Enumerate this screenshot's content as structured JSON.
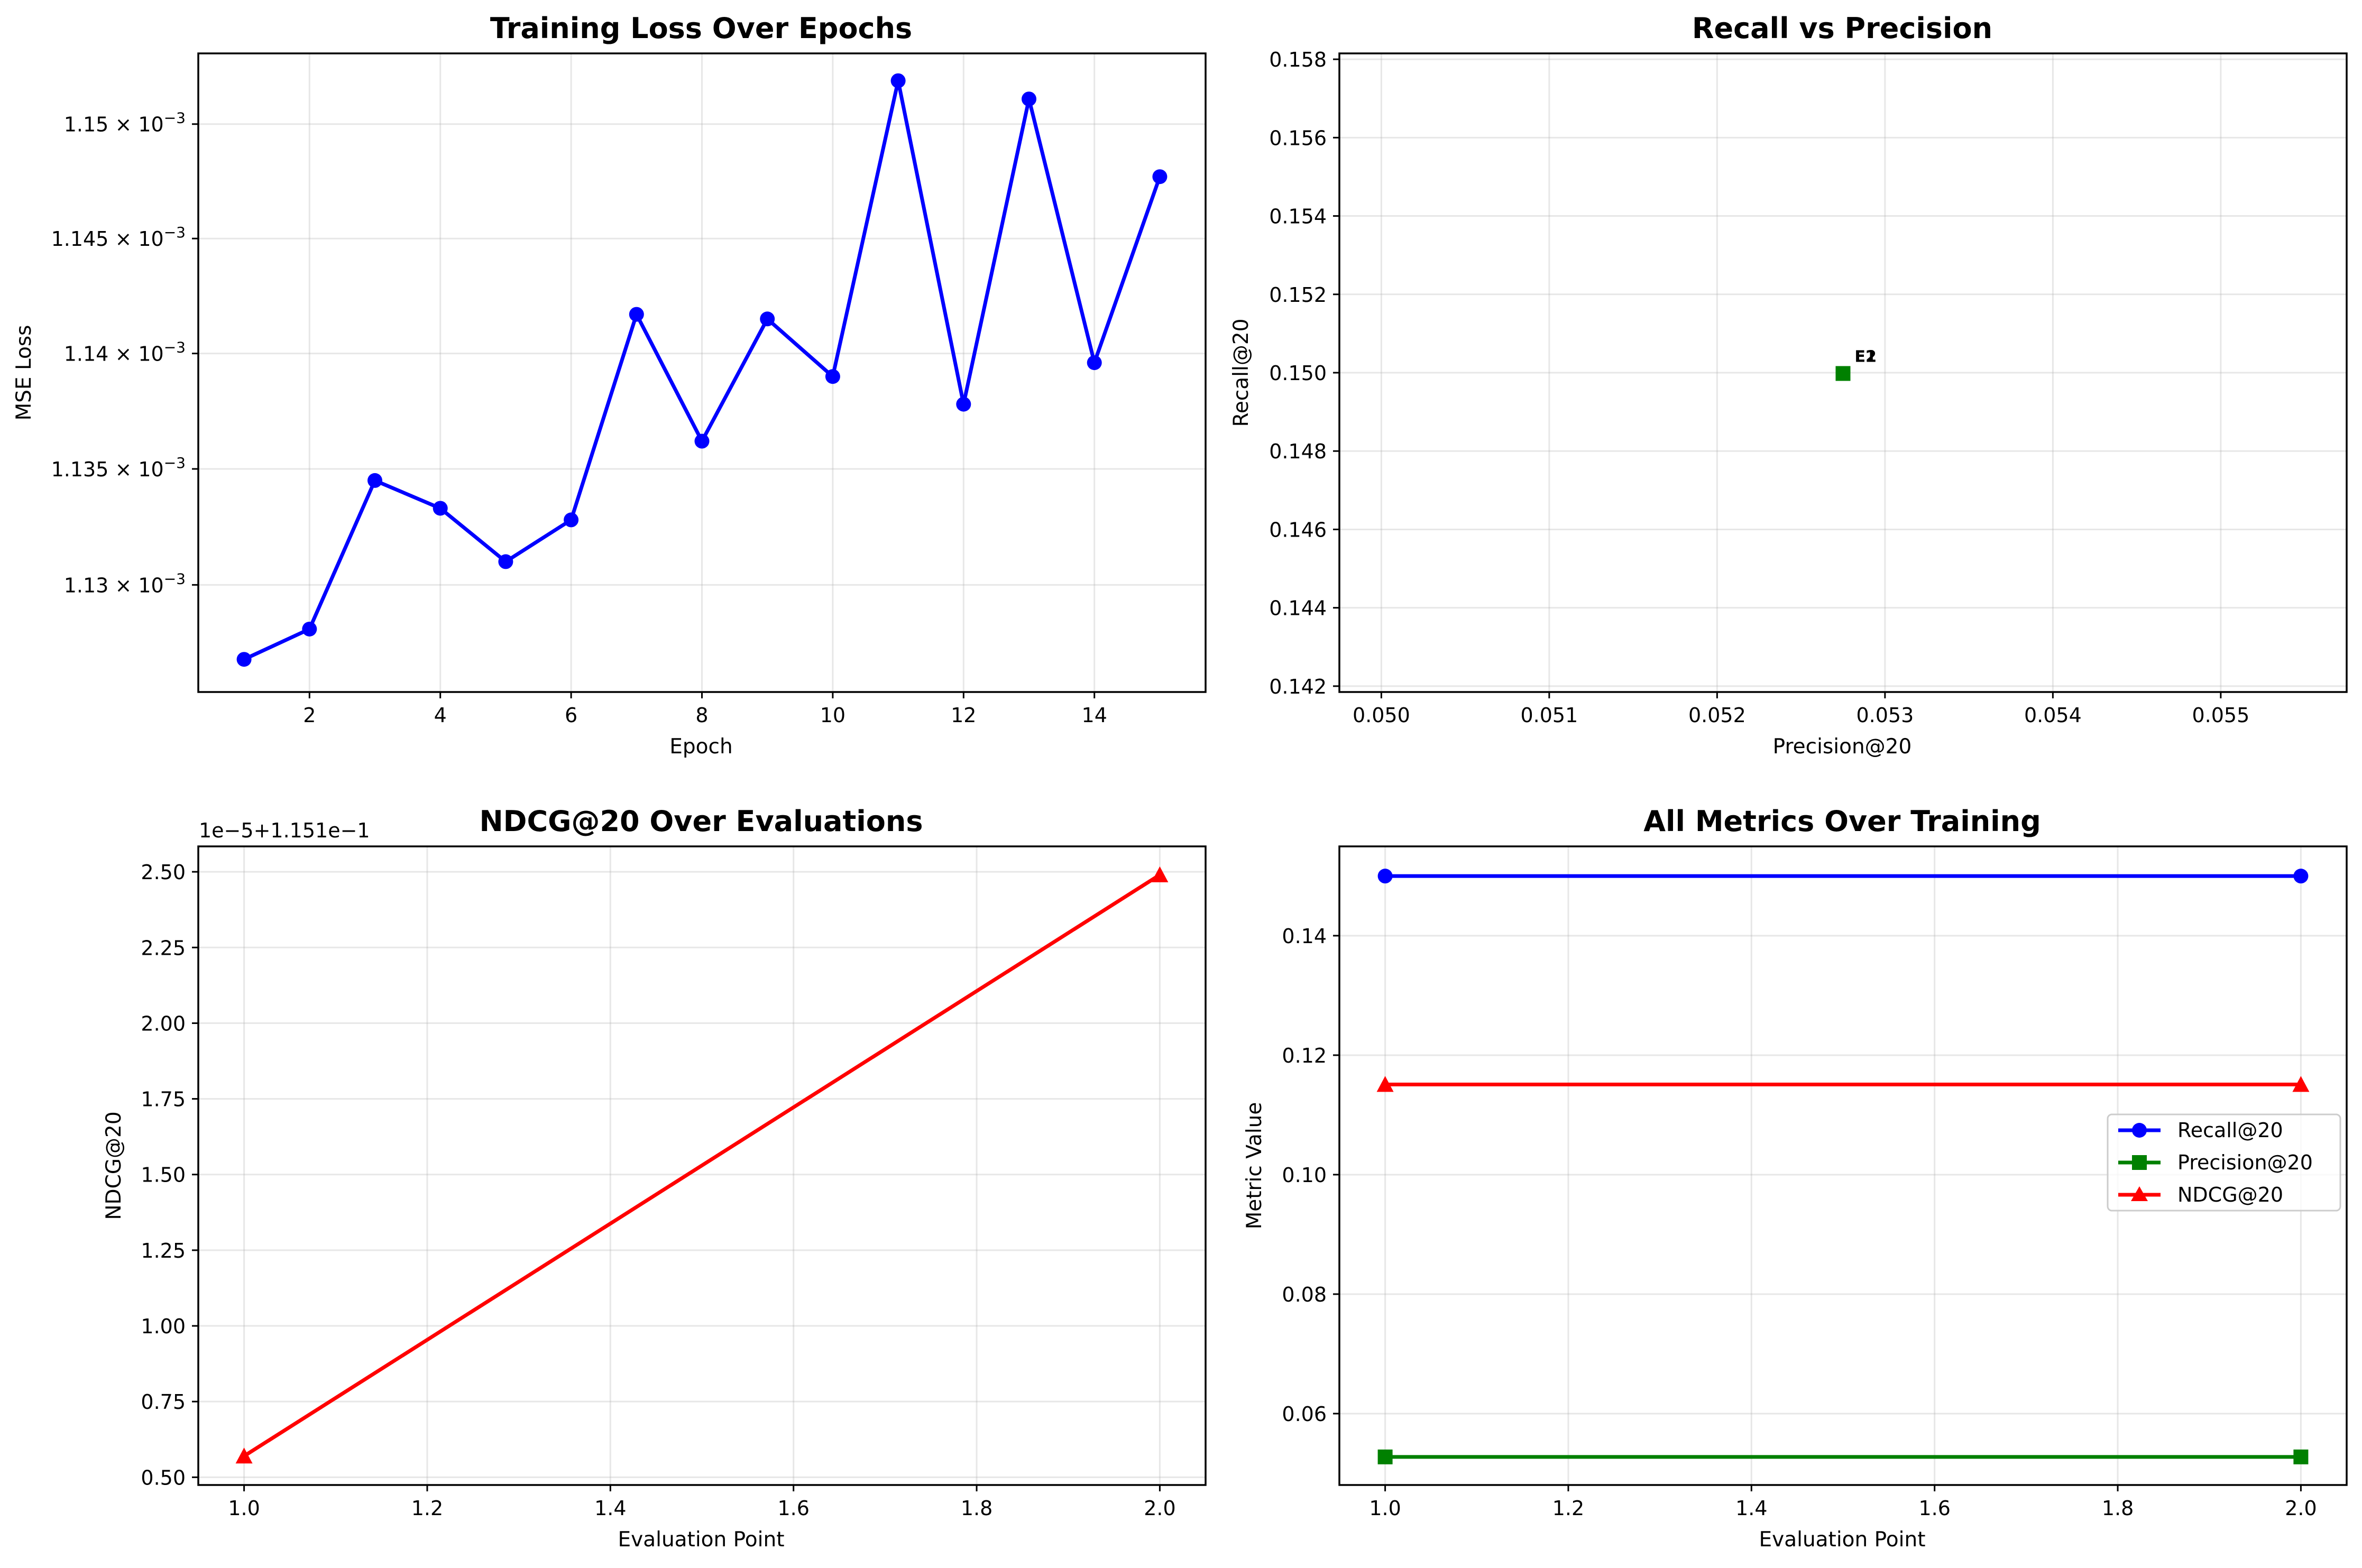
{
  "colors": {
    "recall": "#0000ff",
    "precision": "#008000",
    "ndcg": "#ff0000"
  },
  "chart_data": [
    {
      "type": "line",
      "title": "Training Loss Over Epochs",
      "xlabel": "Epoch",
      "ylabel": "MSE Loss",
      "yscale": "log",
      "xlim": [
        0.3,
        15.7
      ],
      "ylim": [
        0.0011254,
        0.0011531
      ],
      "xticks": [
        2,
        4,
        6,
        8,
        10,
        12,
        14
      ],
      "xtick_labels": [
        "2",
        "4",
        "6",
        "8",
        "10",
        "12",
        "14"
      ],
      "yticks": [
        0.00113,
        0.001135,
        0.00114,
        0.001145,
        0.00115
      ],
      "ytick_labels": [
        {
          "mant": "1.13",
          "exp": "−3"
        },
        {
          "mant": "1.135",
          "exp": "−3"
        },
        {
          "mant": "1.14",
          "exp": "−3"
        },
        {
          "mant": "1.145",
          "exp": "−3"
        },
        {
          "mant": "1.15",
          "exp": "−3"
        }
      ],
      "grid": true,
      "series": [
        {
          "color": "#0000ff",
          "marker": "circle",
          "x": [
            1,
            2,
            3,
            4,
            5,
            6,
            7,
            8,
            9,
            10,
            11,
            12,
            13,
            14,
            15
          ],
          "y": [
            0.0011268,
            0.0011281,
            0.0011345,
            0.0011333,
            0.001131,
            0.0011328,
            0.0011417,
            0.0011362,
            0.0011415,
            0.001139,
            0.0011519,
            0.0011378,
            0.0011511,
            0.0011396,
            0.0011477
          ]
        }
      ]
    },
    {
      "type": "scatter",
      "title": "Recall vs Precision",
      "xlabel": "Precision@20",
      "ylabel": "Recall@20",
      "xlim": [
        0.04975,
        0.05575
      ],
      "ylim": [
        0.14185,
        0.15815
      ],
      "xticks": [
        0.05,
        0.051,
        0.052,
        0.053,
        0.054,
        0.055
      ],
      "xtick_labels": [
        "0.050",
        "0.051",
        "0.052",
        "0.053",
        "0.054",
        "0.055"
      ],
      "yticks": [
        0.142,
        0.144,
        0.146,
        0.148,
        0.15,
        0.152,
        0.154,
        0.156,
        0.158
      ],
      "ytick_labels": [
        "0.142",
        "0.144",
        "0.146",
        "0.148",
        "0.150",
        "0.152",
        "0.154",
        "0.156",
        "0.158"
      ],
      "grid": true,
      "points": [
        {
          "x": 0.05275,
          "y": 0.14998,
          "label": "E1",
          "color": "#008000"
        },
        {
          "x": 0.05275,
          "y": 0.14998,
          "label": "E2",
          "color": "#008000"
        }
      ]
    },
    {
      "type": "line",
      "title": "NDCG@20 Over Evaluations",
      "xlabel": "Evaluation Point",
      "ylabel": "NDCG@20",
      "offset_text": "1e−5+1.151e−1",
      "xlim": [
        0.95,
        2.05
      ],
      "ylim": [
        0.4744,
        2.584
      ],
      "xticks": [
        1.0,
        1.2,
        1.4,
        1.6,
        1.8,
        2.0
      ],
      "xtick_labels": [
        "1.0",
        "1.2",
        "1.4",
        "1.6",
        "1.8",
        "2.0"
      ],
      "yticks": [
        0.5,
        0.75,
        1.0,
        1.25,
        1.5,
        1.75,
        2.0,
        2.25,
        2.5
      ],
      "ytick_labels": [
        "0.50",
        "0.75",
        "1.00",
        "1.25",
        "1.50",
        "1.75",
        "2.00",
        "2.25",
        "2.50"
      ],
      "grid": true,
      "series": [
        {
          "color": "#ff0000",
          "marker": "triangle",
          "x": [
            1.0,
            2.0
          ],
          "y": [
            0.57,
            2.49
          ]
        }
      ]
    },
    {
      "type": "line",
      "title": "All Metrics Over Training",
      "xlabel": "Evaluation Point",
      "ylabel": "Metric Value",
      "xlim": [
        0.95,
        2.05
      ],
      "ylim": [
        0.04805,
        0.15495
      ],
      "xticks": [
        1.0,
        1.2,
        1.4,
        1.6,
        1.8,
        2.0
      ],
      "xtick_labels": [
        "1.0",
        "1.2",
        "1.4",
        "1.6",
        "1.8",
        "2.0"
      ],
      "yticks": [
        0.06,
        0.08,
        0.1,
        0.12,
        0.14
      ],
      "ytick_labels": [
        "0.06",
        "0.08",
        "0.10",
        "0.12",
        "0.14"
      ],
      "grid": true,
      "legend_position": "center-right",
      "series": [
        {
          "name": "Recall@20",
          "color": "#0000ff",
          "marker": "circle",
          "x": [
            1.0,
            2.0
          ],
          "y": [
            0.14998,
            0.14998
          ]
        },
        {
          "name": "Precision@20",
          "color": "#008000",
          "marker": "square",
          "x": [
            1.0,
            2.0
          ],
          "y": [
            0.05275,
            0.05275
          ]
        },
        {
          "name": "NDCG@20",
          "color": "#ff0000",
          "marker": "triangle",
          "x": [
            1.0,
            2.0
          ],
          "y": [
            0.1151,
            0.1151
          ]
        }
      ]
    }
  ]
}
